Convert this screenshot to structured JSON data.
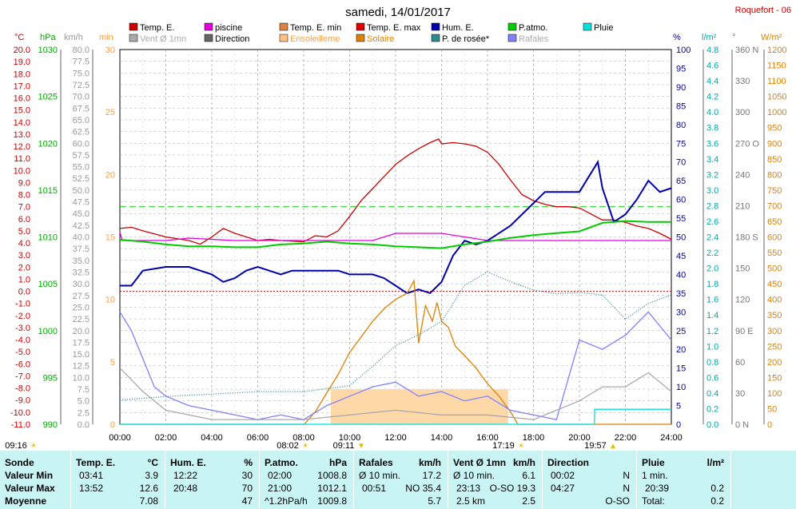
{
  "title": "samedi, 14/01/2017",
  "station": "Roquefort - 06",
  "legend": [
    {
      "label": "Temp. E.",
      "color": "#cc0000"
    },
    {
      "label": "piscine",
      "color": "#e000e0"
    },
    {
      "label": "Temp. E. min",
      "color": "#e08040"
    },
    {
      "label": "Temp. E. max",
      "color": "#e00000"
    },
    {
      "label": "Hum. E.",
      "color": "#0000aa"
    },
    {
      "label": "P.atmo.",
      "color": "#00cc00"
    },
    {
      "label": "Pluie",
      "color": "#00e0e0"
    },
    {
      "label": "Vent Ø 1mn",
      "color": "#aaaaaa"
    },
    {
      "label": "Direction",
      "color": "#666666"
    },
    {
      "label": "Ensoleilleme",
      "color": "#ffc080"
    },
    {
      "label": "Solaire",
      "color": "#e08000"
    },
    {
      "label": "P. de rosée*",
      "color": "#2e8b8b"
    },
    {
      "label": "Rafales",
      "color": "#8080ff"
    }
  ],
  "axes_units": {
    "temp": "°C",
    "press": "hPa",
    "wind": "km/h",
    "min": "min",
    "hum": "%",
    "rain": "l/m²",
    "dir": "°",
    "solar": "W/m²"
  },
  "ticks": {
    "temp": [
      "20.0",
      "19.0",
      "18.0",
      "17.0",
      "16.0",
      "15.0",
      "14.0",
      "13.0",
      "12.0",
      "11.0",
      "10.0",
      "9.0",
      "8.0",
      "7.0",
      "6.0",
      "5.0",
      "4.0",
      "3.0",
      "2.0",
      "1.0",
      "0.0",
      "-1.0",
      "-2.0",
      "-3.0",
      "-4.0",
      "-5.0",
      "-6.0",
      "-7.0",
      "-8.0",
      "-9.0",
      "-10.0",
      "-11.0"
    ],
    "press": [
      "1030",
      "1025",
      "1020",
      "1015",
      "1010",
      "1005",
      "1000",
      "995",
      "990"
    ],
    "wind": [
      "80.0",
      "77.5",
      "75.0",
      "72.5",
      "70.0",
      "67.5",
      "65.0",
      "62.5",
      "60.0",
      "57.5",
      "55.0",
      "52.5",
      "50.0",
      "47.5",
      "45.0",
      "42.5",
      "40.0",
      "37.5",
      "35.0",
      "32.5",
      "30.0",
      "27.5",
      "25.0",
      "22.5",
      "20.0",
      "17.5",
      "15.0",
      "12.5",
      "10.0",
      "7.5",
      "5.0",
      "2.5",
      "0.0"
    ],
    "min": [
      "30",
      "25",
      "20",
      "15",
      "10",
      "5",
      "0"
    ],
    "hum": [
      "100",
      "95",
      "90",
      "85",
      "80",
      "75",
      "70",
      "65",
      "60",
      "55",
      "50",
      "45",
      "40",
      "35",
      "30",
      "25",
      "20",
      "15",
      "10",
      "5",
      "0"
    ],
    "rain": [
      "4.8",
      "4.6",
      "4.4",
      "4.2",
      "4.0",
      "3.8",
      "3.6",
      "3.4",
      "3.2",
      "3.0",
      "2.8",
      "2.6",
      "2.4",
      "2.2",
      "2.0",
      "1.8",
      "1.6",
      "1.4",
      "1.2",
      "1.0",
      "0.8",
      "0.6",
      "0.4",
      "0.2",
      "0.0"
    ],
    "dir": [
      "360 N",
      "330",
      "300",
      "270 O",
      "240",
      "210",
      "180 S",
      "150",
      "120",
      "90 E",
      "60",
      "30",
      "0 N"
    ],
    "solar": [
      "1200",
      "1150",
      "1100",
      "1050",
      "1000",
      "950",
      "900",
      "850",
      "800",
      "750",
      "700",
      "650",
      "600",
      "550",
      "500",
      "450",
      "400",
      "350",
      "300",
      "250",
      "200",
      "150",
      "100",
      "50",
      "0"
    ],
    "time": [
      "00:00",
      "02:00",
      "04:00",
      "06:00",
      "08:00",
      "10:00",
      "12:00",
      "14:00",
      "16:00",
      "18:00",
      "20:00",
      "22:00",
      "24:00"
    ]
  },
  "events": [
    {
      "label": "09:16",
      "symbol": "☀"
    },
    {
      "label": "08:02",
      "symbol": "☀"
    },
    {
      "label": "09:11",
      "symbol": "▼"
    },
    {
      "label": "17:19",
      "symbol": "☀"
    },
    {
      "label": "19:57",
      "symbol": "▲"
    }
  ],
  "chart_data": {
    "type": "line",
    "title": "samedi, 14/01/2017",
    "x_unit": "hour",
    "xlim": [
      0,
      24
    ],
    "temp_range": [
      -11,
      20
    ],
    "hum_range": [
      0,
      100
    ],
    "press_range": [
      990,
      1030
    ],
    "wind_range": [
      0,
      80
    ],
    "solar_range": [
      0,
      1200
    ],
    "series": [
      {
        "name": "Temp. E.",
        "axis": "temp",
        "color": "#cc0000",
        "points": [
          [
            0,
            5.2
          ],
          [
            0.5,
            5.3
          ],
          [
            1,
            5.0
          ],
          [
            2,
            4.5
          ],
          [
            3,
            4.2
          ],
          [
            3.5,
            3.9
          ],
          [
            4,
            4.5
          ],
          [
            4.5,
            5.2
          ],
          [
            5,
            4.8
          ],
          [
            6,
            4.2
          ],
          [
            6.5,
            4.3
          ],
          [
            7,
            4.2
          ],
          [
            8,
            4.1
          ],
          [
            8.5,
            4.6
          ],
          [
            9,
            4.5
          ],
          [
            9.5,
            5.0
          ],
          [
            10,
            6.2
          ],
          [
            10.5,
            7.5
          ],
          [
            11,
            8.5
          ],
          [
            11.5,
            9.5
          ],
          [
            12,
            10.5
          ],
          [
            12.5,
            11.2
          ],
          [
            13,
            11.8
          ],
          [
            13.5,
            12.3
          ],
          [
            13.87,
            12.6
          ],
          [
            14,
            12.2
          ],
          [
            14.5,
            12.3
          ],
          [
            15,
            12.2
          ],
          [
            15.5,
            12.0
          ],
          [
            16,
            11.5
          ],
          [
            16.5,
            10.5
          ],
          [
            17,
            9.2
          ],
          [
            17.5,
            8.0
          ],
          [
            18,
            7.5
          ],
          [
            18.5,
            7.2
          ],
          [
            19,
            7.0
          ],
          [
            19.5,
            7.0
          ],
          [
            20,
            6.9
          ],
          [
            20.5,
            6.4
          ],
          [
            21,
            5.9
          ],
          [
            21.5,
            5.9
          ],
          [
            22,
            5.7
          ],
          [
            22.5,
            5.4
          ],
          [
            23,
            5.2
          ],
          [
            23.5,
            4.8
          ],
          [
            24,
            4.3
          ]
        ]
      },
      {
        "name": "piscine",
        "axis": "temp",
        "color": "#e000e0",
        "points": [
          [
            0,
            4.9
          ],
          [
            0.1,
            4.2
          ],
          [
            2,
            4.2
          ],
          [
            3,
            4.4
          ],
          [
            5,
            4.2
          ],
          [
            10,
            4.2
          ],
          [
            11,
            4.2
          ],
          [
            12,
            4.8
          ],
          [
            14,
            4.8
          ],
          [
            16,
            4.2
          ],
          [
            19,
            4.2
          ],
          [
            20,
            4.2
          ],
          [
            24,
            4.2
          ]
        ]
      },
      {
        "name": "Hum. E.",
        "axis": "hum",
        "color": "#0000aa",
        "points": [
          [
            0,
            37
          ],
          [
            0.5,
            37
          ],
          [
            1,
            41
          ],
          [
            2,
            42
          ],
          [
            3,
            42
          ],
          [
            3.5,
            41
          ],
          [
            4,
            40
          ],
          [
            4.5,
            38
          ],
          [
            5,
            39
          ],
          [
            5.5,
            41
          ],
          [
            6,
            42
          ],
          [
            6.5,
            41
          ],
          [
            7,
            40
          ],
          [
            7.5,
            41
          ],
          [
            8,
            41
          ],
          [
            9,
            41
          ],
          [
            9.5,
            41
          ],
          [
            10,
            40
          ],
          [
            10.5,
            40
          ],
          [
            11,
            40
          ],
          [
            11.5,
            39
          ],
          [
            12,
            37
          ],
          [
            12.5,
            35
          ],
          [
            13,
            36
          ],
          [
            13.5,
            35
          ],
          [
            14,
            38
          ],
          [
            14.5,
            45
          ],
          [
            15,
            49
          ],
          [
            15.5,
            48
          ],
          [
            16,
            49
          ],
          [
            16.5,
            51
          ],
          [
            17,
            53
          ],
          [
            17.5,
            56
          ],
          [
            18,
            59
          ],
          [
            18.5,
            62
          ],
          [
            19,
            62
          ],
          [
            19.5,
            62
          ],
          [
            20,
            62
          ],
          [
            20.5,
            67
          ],
          [
            20.8,
            70
          ],
          [
            21,
            63
          ],
          [
            21.5,
            54
          ],
          [
            22,
            56
          ],
          [
            22.5,
            60
          ],
          [
            23,
            65
          ],
          [
            23.5,
            62
          ],
          [
            24,
            63
          ]
        ]
      },
      {
        "name": "P.atmo.",
        "axis": "press",
        "color": "#00cc00",
        "points": [
          [
            0,
            1009.7
          ],
          [
            1,
            1009.5
          ],
          [
            2,
            1009.2
          ],
          [
            3,
            1009.0
          ],
          [
            4,
            1009.0
          ],
          [
            5,
            1008.9
          ],
          [
            6,
            1008.9
          ],
          [
            7,
            1009.2
          ],
          [
            8,
            1009.3
          ],
          [
            9,
            1009.5
          ],
          [
            10,
            1009.3
          ],
          [
            11,
            1009.2
          ],
          [
            12,
            1009.0
          ],
          [
            13,
            1008.9
          ],
          [
            14,
            1008.8
          ],
          [
            15,
            1009.2
          ],
          [
            16,
            1009.5
          ],
          [
            17,
            1009.9
          ],
          [
            18,
            1010.2
          ],
          [
            19,
            1010.4
          ],
          [
            20,
            1010.6
          ],
          [
            21,
            1011.5
          ],
          [
            22,
            1011.7
          ],
          [
            23,
            1011.6
          ],
          [
            24,
            1011.6
          ]
        ]
      },
      {
        "name": "Solaire",
        "axis": "solar",
        "color": "#e08000",
        "points": [
          [
            0,
            0
          ],
          [
            8.03,
            0
          ],
          [
            8.5,
            40
          ],
          [
            9,
            100
          ],
          [
            9.5,
            160
          ],
          [
            10,
            230
          ],
          [
            10.5,
            280
          ],
          [
            11,
            330
          ],
          [
            11.5,
            370
          ],
          [
            12,
            400
          ],
          [
            12.5,
            420
          ],
          [
            12.8,
            460
          ],
          [
            13,
            260
          ],
          [
            13.3,
            380
          ],
          [
            13.6,
            330
          ],
          [
            13.8,
            390
          ],
          [
            14,
            330
          ],
          [
            14.3,
            310
          ],
          [
            14.6,
            250
          ],
          [
            15,
            220
          ],
          [
            15.5,
            180
          ],
          [
            16,
            130
          ],
          [
            16.5,
            90
          ],
          [
            17,
            40
          ],
          [
            17.32,
            0
          ],
          [
            24,
            0
          ]
        ]
      },
      {
        "name": "P. de rosée*",
        "axis": "temp",
        "color": "#2e8b8b",
        "points": [
          [
            0,
            -9.0
          ],
          [
            2,
            -8.7
          ],
          [
            4,
            -8.5
          ],
          [
            6,
            -8.3
          ],
          [
            8,
            -8.3
          ],
          [
            10,
            -7.8
          ],
          [
            11,
            -6.2
          ],
          [
            12,
            -4.5
          ],
          [
            13,
            -3.6
          ],
          [
            14,
            -2.5
          ],
          [
            15,
            0.5
          ],
          [
            16,
            1.6
          ],
          [
            17,
            0.8
          ],
          [
            18,
            0.1
          ],
          [
            19,
            -0.2
          ],
          [
            20,
            -0.1
          ],
          [
            21,
            -0.3
          ],
          [
            22,
            -2.3
          ],
          [
            23,
            -1.0
          ],
          [
            24,
            -0.3
          ]
        ]
      },
      {
        "name": "Rafales",
        "axis": "wind",
        "color": "#8080ff",
        "points": [
          [
            0,
            24
          ],
          [
            0.5,
            20
          ],
          [
            1,
            14
          ],
          [
            1.5,
            8
          ],
          [
            2,
            6
          ],
          [
            3,
            4
          ],
          [
            4,
            3
          ],
          [
            5,
            2
          ],
          [
            6,
            1
          ],
          [
            7,
            2
          ],
          [
            8,
            1
          ],
          [
            9,
            4
          ],
          [
            10,
            6
          ],
          [
            11,
            8
          ],
          [
            12,
            9
          ],
          [
            13,
            6
          ],
          [
            14,
            7
          ],
          [
            15,
            5
          ],
          [
            16,
            6
          ],
          [
            17,
            3
          ],
          [
            18,
            2
          ],
          [
            19,
            1
          ],
          [
            20,
            18
          ],
          [
            21,
            16
          ],
          [
            22,
            19
          ],
          [
            23,
            24
          ],
          [
            24,
            18
          ]
        ]
      },
      {
        "name": "Vent Ø 1mn",
        "axis": "wind",
        "color": "#aaaaaa",
        "points": [
          [
            0,
            12
          ],
          [
            1,
            7
          ],
          [
            2,
            3
          ],
          [
            3,
            2
          ],
          [
            4,
            1
          ],
          [
            6,
            1
          ],
          [
            8,
            1
          ],
          [
            10,
            2
          ],
          [
            12,
            3
          ],
          [
            14,
            2
          ],
          [
            16,
            2
          ],
          [
            18,
            1
          ],
          [
            20,
            5
          ],
          [
            21,
            8
          ],
          [
            22,
            8
          ],
          [
            23,
            11
          ],
          [
            24,
            7
          ]
        ]
      },
      {
        "name": "Pluie",
        "axis": "rain",
        "color": "#00e0e0",
        "points": [
          [
            0,
            0
          ],
          [
            20.65,
            0
          ],
          [
            20.66,
            0.2
          ],
          [
            24,
            0.2
          ]
        ]
      }
    ]
  },
  "stats": {
    "headers": [
      "Sonde",
      "Temp. E.",
      "°C",
      "Hum. E.",
      "%",
      "P.atmo.",
      "hPa",
      "Rafales",
      "km/h",
      "Vent Ø 1mn",
      "km/h",
      "Direction",
      "Pluie",
      "l/m²"
    ],
    "row_labels": [
      "Valeur Min",
      "Valeur Max",
      "Moyenne"
    ],
    "temp": [
      [
        "03:41",
        "3.9"
      ],
      [
        "13:52",
        "12.6"
      ],
      [
        "",
        "7.08"
      ]
    ],
    "hum": [
      [
        "12:22",
        "30"
      ],
      [
        "20:48",
        "70"
      ],
      [
        "",
        "47"
      ]
    ],
    "press": [
      [
        "02:00",
        "1008.8"
      ],
      [
        "21:00",
        "1012.1"
      ],
      [
        "^1.2hPa/h",
        "1009.8"
      ]
    ],
    "gust": [
      [
        "Ø 10 min.",
        "17.2"
      ],
      [
        "00:51",
        "NO 35.4"
      ],
      [
        "",
        "5.7"
      ]
    ],
    "wind": [
      [
        "Ø 10 min.",
        "6.1"
      ],
      [
        "23:13",
        "O-SO 19.3"
      ],
      [
        "2.5 km",
        "2.5"
      ]
    ],
    "dir": [
      [
        "00:02",
        "N"
      ],
      [
        "04:27",
        "N"
      ],
      [
        "",
        "O-SO"
      ]
    ],
    "rain": [
      [
        "1 min.",
        ""
      ],
      [
        "20:39",
        "0.2"
      ],
      [
        "Total:",
        "0.2"
      ]
    ]
  }
}
